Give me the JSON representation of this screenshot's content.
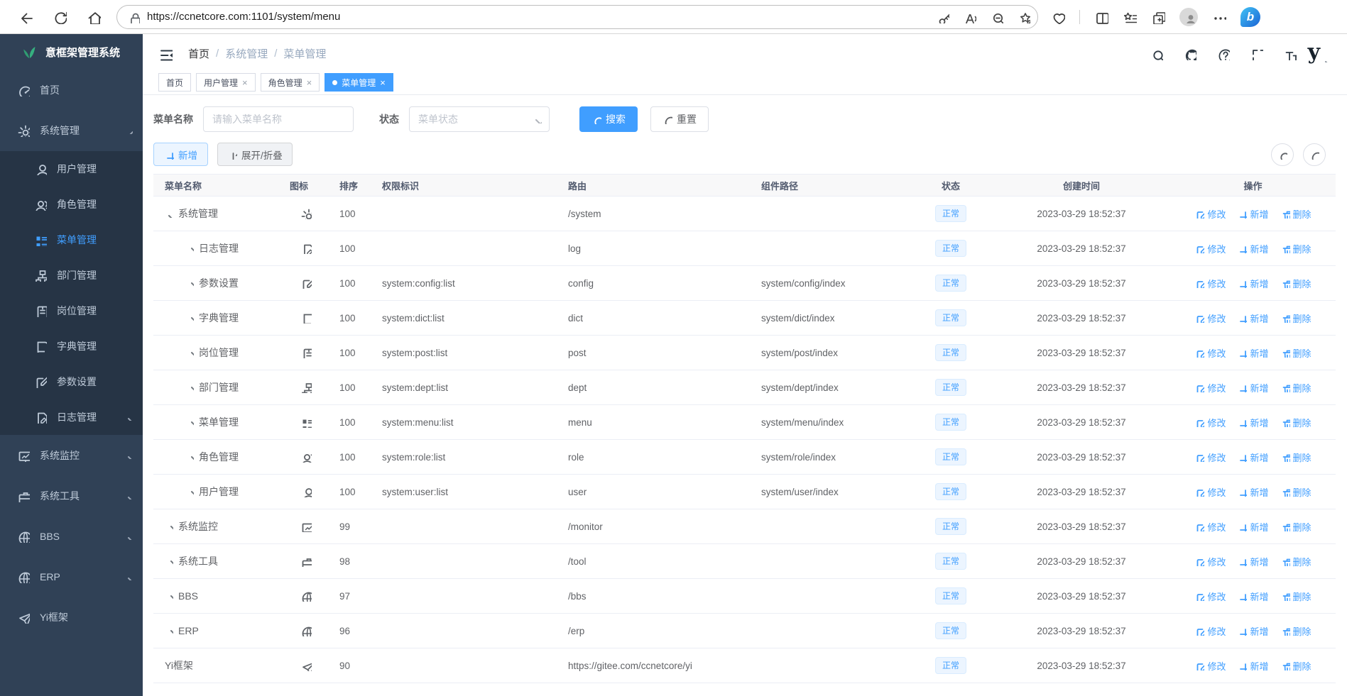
{
  "browser": {
    "url": "https://ccnetcore.com:1101/system/menu",
    "left_icons": [
      "back",
      "reload",
      "home"
    ],
    "pill_right_icons": [
      "key",
      "read-aloud",
      "zoom-out",
      "favorite-add"
    ],
    "right_icons": [
      "essentials",
      "divider",
      "split-screen",
      "favorites-bar",
      "collections",
      "profile",
      "more",
      "bing"
    ]
  },
  "sidebar": {
    "logo_text": "意框架管理系统",
    "items": [
      {
        "key": "home",
        "label": "首页",
        "icon": "gauge"
      },
      {
        "key": "system",
        "label": "系统管理",
        "icon": "gear",
        "expanded": true,
        "children": [
          {
            "key": "user",
            "label": "用户管理",
            "icon": "user"
          },
          {
            "key": "role",
            "label": "角色管理",
            "icon": "users"
          },
          {
            "key": "menu",
            "label": "菜单管理",
            "icon": "list",
            "active": true
          },
          {
            "key": "dept",
            "label": "部门管理",
            "icon": "tree"
          },
          {
            "key": "post",
            "label": "岗位管理",
            "icon": "badge"
          },
          {
            "key": "dict",
            "label": "字典管理",
            "icon": "book"
          },
          {
            "key": "config",
            "label": "参数设置",
            "icon": "edit"
          },
          {
            "key": "log",
            "label": "日志管理",
            "icon": "log",
            "arrow": "down"
          }
        ]
      },
      {
        "key": "monitor",
        "label": "系统监控",
        "icon": "monitor",
        "arrow": "down"
      },
      {
        "key": "tool",
        "label": "系统工具",
        "icon": "case",
        "arrow": "down"
      },
      {
        "key": "bbs",
        "label": "BBS",
        "icon": "globe",
        "arrow": "down"
      },
      {
        "key": "erp",
        "label": "ERP",
        "icon": "globe",
        "arrow": "down"
      },
      {
        "key": "yi",
        "label": "Yi框架",
        "icon": "plane"
      }
    ]
  },
  "header": {
    "breadcrumb": [
      "首页",
      "系统管理",
      "菜单管理"
    ],
    "separator": "/",
    "right_icons": [
      "search",
      "github",
      "question",
      "fullscreen",
      "font-size"
    ],
    "logo_glyph": "y"
  },
  "tabs": [
    {
      "key": "home",
      "label": "首页",
      "closable": false,
      "active": false
    },
    {
      "key": "user",
      "label": "用户管理",
      "closable": true,
      "active": false
    },
    {
      "key": "role",
      "label": "角色管理",
      "closable": true,
      "active": false
    },
    {
      "key": "menu",
      "label": "菜单管理",
      "closable": true,
      "active": true
    }
  ],
  "filter": {
    "name_label": "菜单名称",
    "name_placeholder": "请输入菜单名称",
    "name_value": "",
    "status_label": "状态",
    "status_placeholder": "菜单状态",
    "search_label": "搜索",
    "reset_label": "重置"
  },
  "toolbar": {
    "add_label": "新增",
    "expand_label": "展开/折叠"
  },
  "table": {
    "columns": [
      "菜单名称",
      "图标",
      "排序",
      "权限标识",
      "路由",
      "组件路径",
      "状态",
      "创建时间",
      "操作"
    ],
    "actions": {
      "edit": "修改",
      "add": "新增",
      "delete": "删除"
    },
    "rows": [
      {
        "name": "系统管理",
        "level": 1,
        "arrow": "down",
        "icon": "gear",
        "order": "100",
        "perm": "",
        "route": "/system",
        "component": "",
        "status": "正常",
        "created": "2023-03-29 18:52:37"
      },
      {
        "name": "日志管理",
        "level": 2,
        "arrow": "right",
        "icon": "log",
        "order": "100",
        "perm": "",
        "route": "log",
        "component": "",
        "status": "正常",
        "created": "2023-03-29 18:52:37"
      },
      {
        "name": "参数设置",
        "level": 2,
        "arrow": "right",
        "icon": "edit",
        "order": "100",
        "perm": "system:config:list",
        "route": "config",
        "component": "system/config/index",
        "status": "正常",
        "created": "2023-03-29 18:52:37"
      },
      {
        "name": "字典管理",
        "level": 2,
        "arrow": "right",
        "icon": "book",
        "order": "100",
        "perm": "system:dict:list",
        "route": "dict",
        "component": "system/dict/index",
        "status": "正常",
        "created": "2023-03-29 18:52:37"
      },
      {
        "name": "岗位管理",
        "level": 2,
        "arrow": "right",
        "icon": "badge",
        "order": "100",
        "perm": "system:post:list",
        "route": "post",
        "component": "system/post/index",
        "status": "正常",
        "created": "2023-03-29 18:52:37"
      },
      {
        "name": "部门管理",
        "level": 2,
        "arrow": "right",
        "icon": "tree",
        "order": "100",
        "perm": "system:dept:list",
        "route": "dept",
        "component": "system/dept/index",
        "status": "正常",
        "created": "2023-03-29 18:52:37"
      },
      {
        "name": "菜单管理",
        "level": 2,
        "arrow": "right",
        "icon": "list",
        "order": "100",
        "perm": "system:menu:list",
        "route": "menu",
        "component": "system/menu/index",
        "status": "正常",
        "created": "2023-03-29 18:52:37"
      },
      {
        "name": "角色管理",
        "level": 2,
        "arrow": "right",
        "icon": "users",
        "order": "100",
        "perm": "system:role:list",
        "route": "role",
        "component": "system/role/index",
        "status": "正常",
        "created": "2023-03-29 18:52:37"
      },
      {
        "name": "用户管理",
        "level": 2,
        "arrow": "right",
        "icon": "user",
        "order": "100",
        "perm": "system:user:list",
        "route": "user",
        "component": "system/user/index",
        "status": "正常",
        "created": "2023-03-29 18:52:37"
      },
      {
        "name": "系统监控",
        "level": 1,
        "arrow": "right",
        "icon": "monitor",
        "order": "99",
        "perm": "",
        "route": "/monitor",
        "component": "",
        "status": "正常",
        "created": "2023-03-29 18:52:37"
      },
      {
        "name": "系统工具",
        "level": 1,
        "arrow": "right",
        "icon": "case",
        "order": "98",
        "perm": "",
        "route": "/tool",
        "component": "",
        "status": "正常",
        "created": "2023-03-29 18:52:37"
      },
      {
        "name": "BBS",
        "level": 1,
        "arrow": "right",
        "icon": "globe",
        "order": "97",
        "perm": "",
        "route": "/bbs",
        "component": "",
        "status": "正常",
        "created": "2023-03-29 18:52:37"
      },
      {
        "name": "ERP",
        "level": 1,
        "arrow": "right",
        "icon": "globe",
        "order": "96",
        "perm": "",
        "route": "/erp",
        "component": "",
        "status": "正常",
        "created": "2023-03-29 18:52:37"
      },
      {
        "name": "Yi框架",
        "level": 1,
        "arrow": "none",
        "icon": "plane",
        "order": "90",
        "perm": "",
        "route": "https://gitee.com/ccnetcore/yi",
        "component": "",
        "status": "正常",
        "created": "2023-03-29 18:52:37"
      }
    ]
  },
  "colors": {
    "accent": "#409eff",
    "sidebar_bg": "#304156",
    "submenu_bg": "#263445",
    "badge_bg": "#ecf5ff",
    "badge_border": "#d9ecff",
    "table_border": "#ebeef5",
    "logo_leaf_green": "#36b07f"
  }
}
